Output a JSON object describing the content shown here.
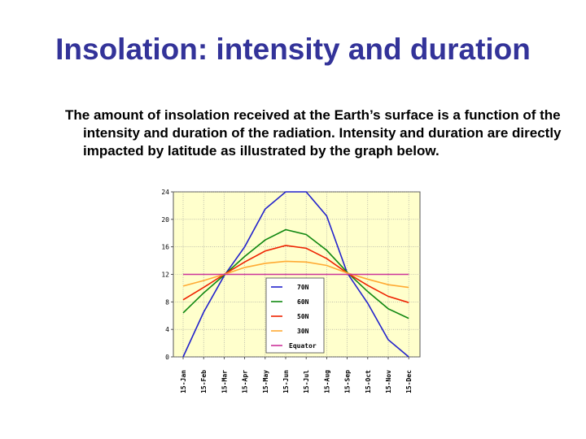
{
  "slide": {
    "title": "Insolation: intensity and duration",
    "body": "The amount of insolation received at the Earth’s surface is a function of the intensity and duration of the radiation.  Intensity and duration are directly impacted by latitude as illustrated by the graph below."
  },
  "chart_data": {
    "type": "line",
    "title": "",
    "xlabel": "",
    "ylabel": "",
    "categories": [
      "15-Jan",
      "15-Feb",
      "15-Mar",
      "15-Apr",
      "15-May",
      "15-Jun",
      "15-Jul",
      "15-Aug",
      "15-Sep",
      "15-Oct",
      "15-Nov",
      "15-Dec"
    ],
    "ylim": [
      0,
      24
    ],
    "yticks": [
      "0",
      "4",
      "8",
      "12",
      "16",
      "20",
      "24"
    ],
    "grid": true,
    "legend_position": "center",
    "plot_background": "#ffffcc",
    "series": [
      {
        "name": "70N",
        "color": "#2222cc",
        "values": [
          0,
          6.5,
          11.8,
          16,
          21.5,
          24,
          24,
          20.5,
          12.2,
          7.8,
          2.5,
          0
        ]
      },
      {
        "name": "60N",
        "color": "#118811",
        "values": [
          6.4,
          9.3,
          11.9,
          14.6,
          17,
          18.5,
          17.8,
          15.5,
          12.3,
          9.5,
          7,
          5.6
        ]
      },
      {
        "name": "50N",
        "color": "#ee2200",
        "values": [
          8.3,
          10.1,
          12,
          13.8,
          15.4,
          16.2,
          15.8,
          14.3,
          12.2,
          10.4,
          8.8,
          7.9
        ]
      },
      {
        "name": "30N",
        "color": "#ffaa33",
        "values": [
          10.3,
          11.1,
          12,
          13,
          13.6,
          13.9,
          13.8,
          13.3,
          12.2,
          11.3,
          10.5,
          10.1
        ]
      },
      {
        "name": "Equator",
        "color": "#cc3399",
        "values": [
          12,
          12,
          12,
          12,
          12,
          12,
          12,
          12,
          12,
          12,
          12,
          12
        ]
      }
    ]
  }
}
